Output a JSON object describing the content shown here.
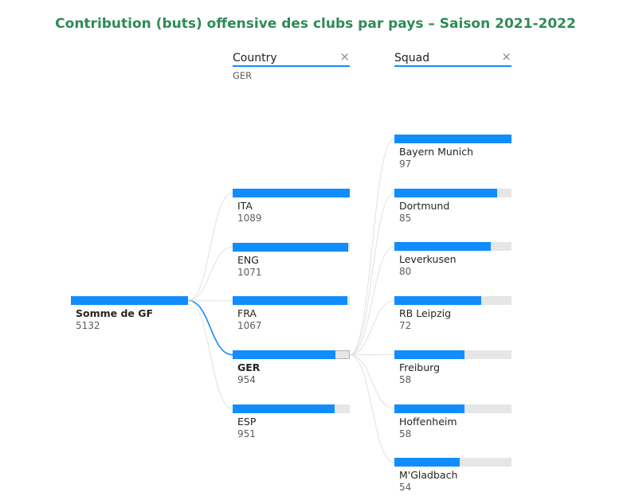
{
  "title": "Contribution (buts) offensive des clubs par pays – Saison 2021-2022",
  "colors": {
    "accent": "#118dff",
    "title": "#2e8b57",
    "track": "#e6e6e6",
    "link": "#e1e1e1"
  },
  "levels": [
    {
      "label": "Country",
      "selected": "GER",
      "close_icon": "×"
    },
    {
      "label": "Squad",
      "selected": "",
      "close_icon": "×"
    }
  ],
  "chart_data": {
    "type": "decomposition-tree",
    "root": {
      "label": "Somme de GF",
      "value": 5132
    },
    "country": [
      {
        "label": "ITA",
        "value": 1089
      },
      {
        "label": "ENG",
        "value": 1071
      },
      {
        "label": "FRA",
        "value": 1067
      },
      {
        "label": "GER",
        "value": 954,
        "selected": true
      },
      {
        "label": "ESP",
        "value": 951
      }
    ],
    "squad": [
      {
        "label": "Bayern Munich",
        "value": 97
      },
      {
        "label": "Dortmund",
        "value": 85
      },
      {
        "label": "Leverkusen",
        "value": 80
      },
      {
        "label": "RB Leipzig",
        "value": 72
      },
      {
        "label": "Freiburg",
        "value": 58
      },
      {
        "label": "Hoffenheim",
        "value": 58
      },
      {
        "label": "M'Gladbach",
        "value": 54
      }
    ]
  }
}
